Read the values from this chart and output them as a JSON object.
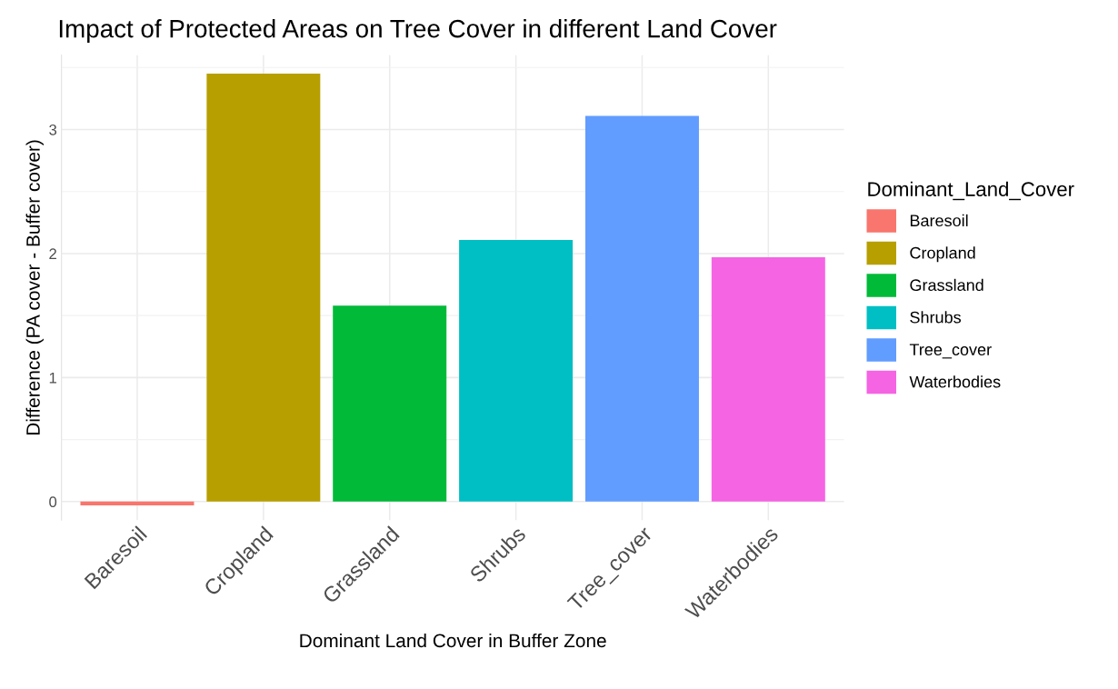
{
  "chart_data": {
    "type": "bar",
    "title": "Impact of Protected Areas on Tree Cover in different Land Cover",
    "xlabel": "Dominant Land Cover in Buffer Zone",
    "ylabel": "Difference (PA cover - Buffer cover)",
    "legend_title": "Dominant_Land_Cover",
    "categories": [
      "Baresoil",
      "Cropland",
      "Grassland",
      "Shrubs",
      "Tree_cover",
      "Waterbodies"
    ],
    "series": [
      {
        "name": "Baresoil",
        "color": "#f8766d",
        "values": [
          -0.03,
          null,
          null,
          null,
          null,
          null
        ]
      },
      {
        "name": "Cropland",
        "color": "#b79f00",
        "values": [
          null,
          3.45,
          null,
          null,
          null,
          null
        ]
      },
      {
        "name": "Grassland",
        "color": "#00ba38",
        "values": [
          null,
          null,
          1.58,
          null,
          null,
          null
        ]
      },
      {
        "name": "Shrubs",
        "color": "#00bfc4",
        "values": [
          null,
          null,
          null,
          2.11,
          null,
          null
        ]
      },
      {
        "name": "Tree_cover",
        "color": "#619cff",
        "values": [
          null,
          null,
          null,
          null,
          3.11,
          null
        ]
      },
      {
        "name": "Waterbodies",
        "color": "#f564e3",
        "values": [
          null,
          null,
          null,
          null,
          null,
          1.97
        ]
      }
    ],
    "ylim": [
      -0.15,
      3.6
    ],
    "yticks": [
      0,
      1,
      2,
      3
    ],
    "grid": true,
    "legend": "right"
  }
}
